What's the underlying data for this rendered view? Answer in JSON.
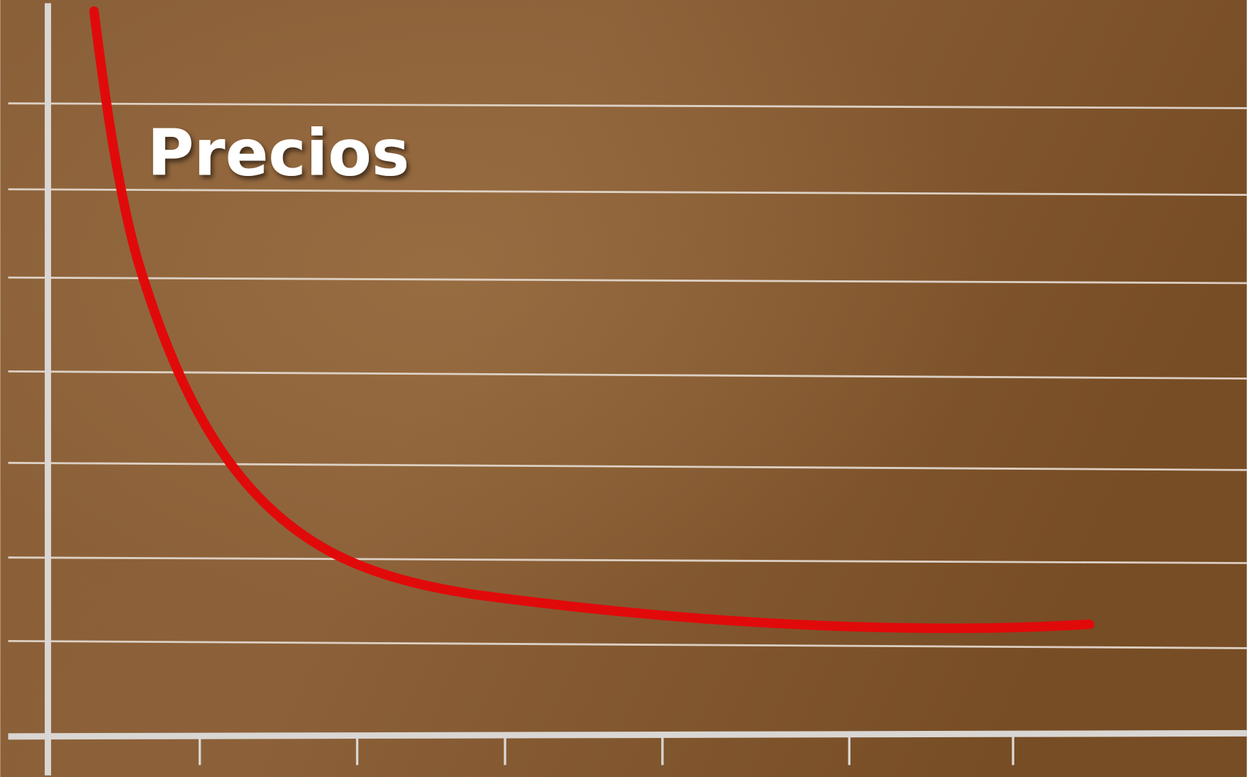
{
  "title": "Precios"
}
